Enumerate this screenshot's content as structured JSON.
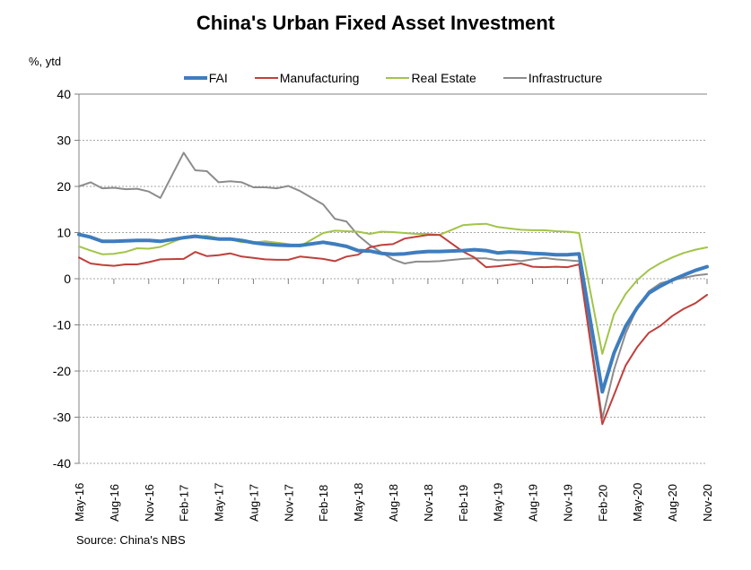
{
  "chart_data": {
    "type": "line",
    "title": "China's Urban Fixed Asset Investment",
    "source_note": "Source: China's NBS",
    "legend_position": "top-center",
    "grid": "horizontal dashed lines every 10 units, solid top border",
    "y_axis": {
      "unit_label": "%, ytd",
      "min": -40,
      "max": 40,
      "ticks": [
        40,
        30,
        20,
        10,
        0,
        -10,
        -20,
        -30,
        -40
      ]
    },
    "x_axis": {
      "unit": "month",
      "tick_labels": [
        "May-16",
        "Aug-16",
        "Nov-16",
        "Feb-17",
        "May-17",
        "Aug-17",
        "Nov-17",
        "Feb-18",
        "May-18",
        "Aug-18",
        "Nov-18",
        "Feb-19",
        "May-19",
        "Aug-19",
        "Nov-19",
        "Feb-20",
        "May-20",
        "Aug-20",
        "Nov-20"
      ]
    },
    "point_labels": [
      "May-16",
      "Jun-16",
      "Jul-16",
      "Aug-16",
      "Sep-16",
      "Oct-16",
      "Nov-16",
      "Dec-16",
      "Feb-17",
      "Mar-17",
      "Apr-17",
      "May-17",
      "Jun-17",
      "Jul-17",
      "Aug-17",
      "Sep-17",
      "Oct-17",
      "Nov-17",
      "Dec-17",
      "Feb-18",
      "Mar-18",
      "Apr-18",
      "May-18",
      "Jun-18",
      "Jul-18",
      "Aug-18",
      "Sep-18",
      "Oct-18",
      "Nov-18",
      "Dec-18",
      "Feb-19",
      "Mar-19",
      "Apr-19",
      "May-19",
      "Jun-19",
      "Jul-19",
      "Aug-19",
      "Sep-19",
      "Oct-19",
      "Nov-19",
      "Dec-19",
      "Feb-20",
      "Mar-20",
      "Apr-20",
      "May-20",
      "Jun-20",
      "Jul-20",
      "Aug-20",
      "Sep-20",
      "Oct-20",
      "Nov-20"
    ],
    "month_index": [
      0,
      1,
      2,
      3,
      4,
      5,
      6,
      7,
      9,
      10,
      11,
      12,
      13,
      14,
      15,
      16,
      17,
      18,
      19,
      21,
      22,
      23,
      24,
      25,
      26,
      27,
      28,
      29,
      30,
      31,
      33,
      34,
      35,
      36,
      37,
      38,
      39,
      40,
      41,
      42,
      43,
      45,
      46,
      47,
      48,
      49,
      50,
      51,
      52,
      53,
      54
    ],
    "series": [
      {
        "name": "FAI",
        "color": "#3E7DBE",
        "line_width": 4,
        "values": [
          9.6,
          9.0,
          8.1,
          8.1,
          8.2,
          8.3,
          8.3,
          8.1,
          8.9,
          9.2,
          8.9,
          8.6,
          8.6,
          8.3,
          7.8,
          7.5,
          7.3,
          7.2,
          7.2,
          7.9,
          7.5,
          7.0,
          6.1,
          6.0,
          5.5,
          5.3,
          5.4,
          5.7,
          5.9,
          5.9,
          6.1,
          6.3,
          6.1,
          5.6,
          5.8,
          5.7,
          5.5,
          5.4,
          5.2,
          5.2,
          5.4,
          -24.5,
          -16.1,
          -10.3,
          -6.3,
          -3.1,
          -1.6,
          -0.3,
          0.8,
          1.8,
          2.6
        ]
      },
      {
        "name": "Manufacturing",
        "color": "#C0403C",
        "line_width": 2,
        "values": [
          4.6,
          3.3,
          3.0,
          2.8,
          3.1,
          3.1,
          3.6,
          4.2,
          4.3,
          5.8,
          4.9,
          5.1,
          5.5,
          4.8,
          4.5,
          4.2,
          4.1,
          4.1,
          4.8,
          4.3,
          3.8,
          4.8,
          5.2,
          6.8,
          7.3,
          7.5,
          8.7,
          9.1,
          9.5,
          9.5,
          5.9,
          4.6,
          2.5,
          2.7,
          3.0,
          3.3,
          2.6,
          2.5,
          2.6,
          2.5,
          3.1,
          -31.5,
          -25.2,
          -18.8,
          -14.8,
          -11.7,
          -10.2,
          -8.1,
          -6.5,
          -5.3,
          -3.5
        ]
      },
      {
        "name": "Real Estate",
        "color": "#A2C449",
        "line_width": 2,
        "values": [
          7.0,
          6.1,
          5.3,
          5.4,
          5.8,
          6.6,
          6.5,
          6.9,
          8.9,
          9.1,
          9.3,
          8.8,
          8.5,
          7.9,
          7.8,
          8.1,
          7.8,
          7.5,
          7.0,
          9.9,
          10.4,
          10.3,
          10.2,
          9.7,
          10.2,
          10.1,
          9.9,
          9.7,
          9.7,
          9.5,
          11.6,
          11.8,
          11.9,
          11.2,
          10.9,
          10.6,
          10.5,
          10.5,
          10.3,
          10.2,
          9.9,
          -16.3,
          -7.7,
          -3.3,
          -0.3,
          1.9,
          3.4,
          4.6,
          5.6,
          6.3,
          6.8
        ]
      },
      {
        "name": "Infrastructure",
        "color": "#8C8C8C",
        "line_width": 2,
        "values": [
          20.0,
          20.9,
          19.6,
          19.7,
          19.4,
          19.5,
          18.9,
          17.5,
          27.3,
          23.5,
          23.3,
          20.9,
          21.1,
          20.9,
          19.8,
          19.8,
          19.6,
          20.1,
          19.0,
          16.1,
          13.0,
          12.4,
          9.4,
          7.3,
          5.7,
          4.2,
          3.3,
          3.7,
          3.7,
          3.8,
          4.3,
          4.4,
          4.4,
          4.0,
          4.1,
          3.8,
          4.2,
          4.5,
          4.2,
          4.0,
          3.8,
          -30.3,
          -19.7,
          -11.8,
          -6.3,
          -2.7,
          -1.0,
          -0.3,
          0.2,
          0.7,
          1.0
        ]
      }
    ],
    "colors": {
      "axis": "#808080",
      "gridline": "#A6A6A6",
      "text": "#000000",
      "background": "#FFFFFF"
    }
  }
}
